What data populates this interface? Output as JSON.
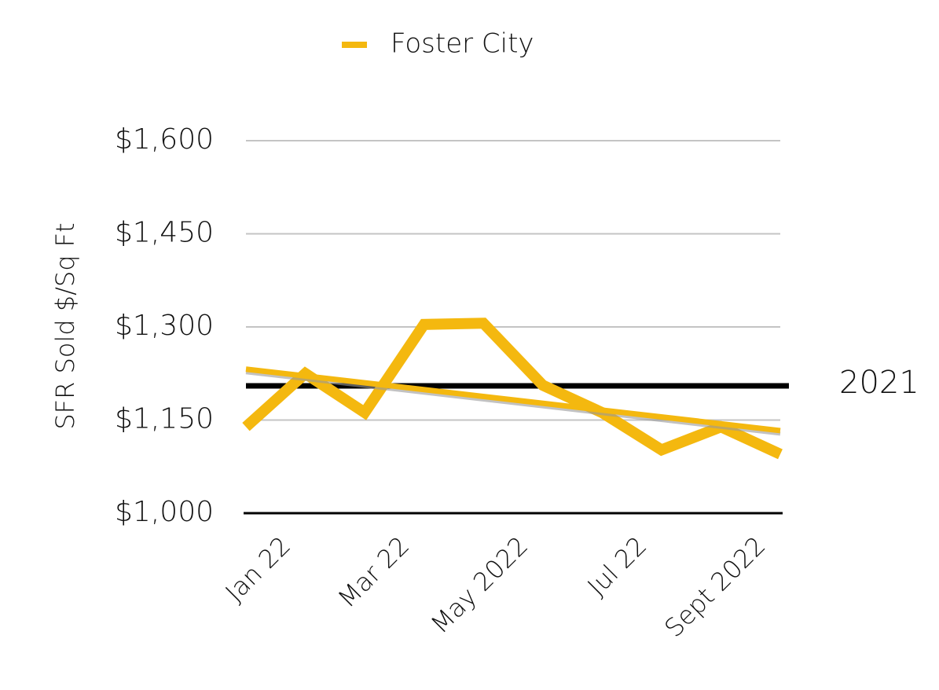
{
  "chart_data": {
    "type": "line",
    "ylabel": "SFR Sold $/Sq Ft",
    "categories": [
      "Jan 22",
      null,
      "Mar 22",
      null,
      "May 2022",
      null,
      "Jul 22",
      null,
      "Sept 2022",
      null
    ],
    "series": [
      {
        "name": "Foster City",
        "color": "#f4b80f",
        "values": [
          1139,
          1225,
          1162,
          1304,
          1306,
          1206,
          1162,
          1102,
          1139,
          1095
        ]
      }
    ],
    "trendline": {
      "color": "#f4b80f",
      "start": 1232,
      "end": 1133
    },
    "reference_line": {
      "value": 1205,
      "label": "2021",
      "color": "#000000"
    },
    "ylim": [
      1000,
      1600
    ],
    "yticks": [
      {
        "value": 1000,
        "label": "$1,000"
      },
      {
        "value": 1150,
        "label": "$1,150"
      },
      {
        "value": 1300,
        "label": "$1,300"
      },
      {
        "value": 1450,
        "label": "$1,450"
      },
      {
        "value": 1600,
        "label": "$1,600"
      }
    ],
    "grid": true,
    "legend": "top"
  }
}
